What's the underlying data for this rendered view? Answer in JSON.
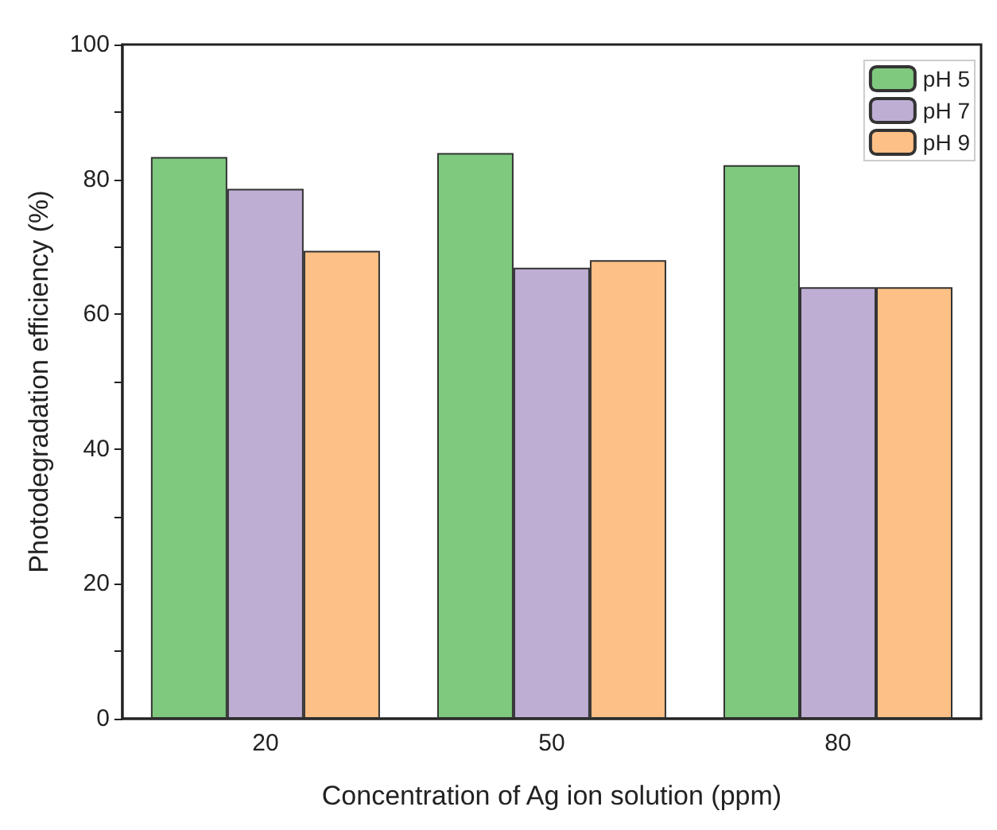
{
  "chart_data": {
    "type": "bar",
    "xlabel": "Concentration of Ag ion solution (ppm)",
    "ylabel": "Photodegradation efficiency (%)",
    "categories": [
      "20",
      "50",
      "80"
    ],
    "series": [
      {
        "name": "pH 5",
        "color": "#7fc97f",
        "values": [
          83.3,
          83.9,
          82.1
        ]
      },
      {
        "name": "pH 7",
        "color": "#beaed4",
        "values": [
          78.6,
          66.9,
          64.0
        ]
      },
      {
        "name": "pH 9",
        "color": "#fdc086",
        "values": [
          69.4,
          68.0,
          64.0
        ]
      }
    ],
    "ylim": [
      0,
      100
    ],
    "yticks": [
      0,
      {
        "value": 10,
        "label": null
      },
      20,
      {
        "value": 30,
        "label": null
      },
      40,
      {
        "value": 50,
        "label": null
      },
      60,
      {
        "value": 70,
        "label": null
      },
      80,
      {
        "value": 90,
        "label": null
      },
      100
    ],
    "grid": false,
    "legend": "top right"
  }
}
